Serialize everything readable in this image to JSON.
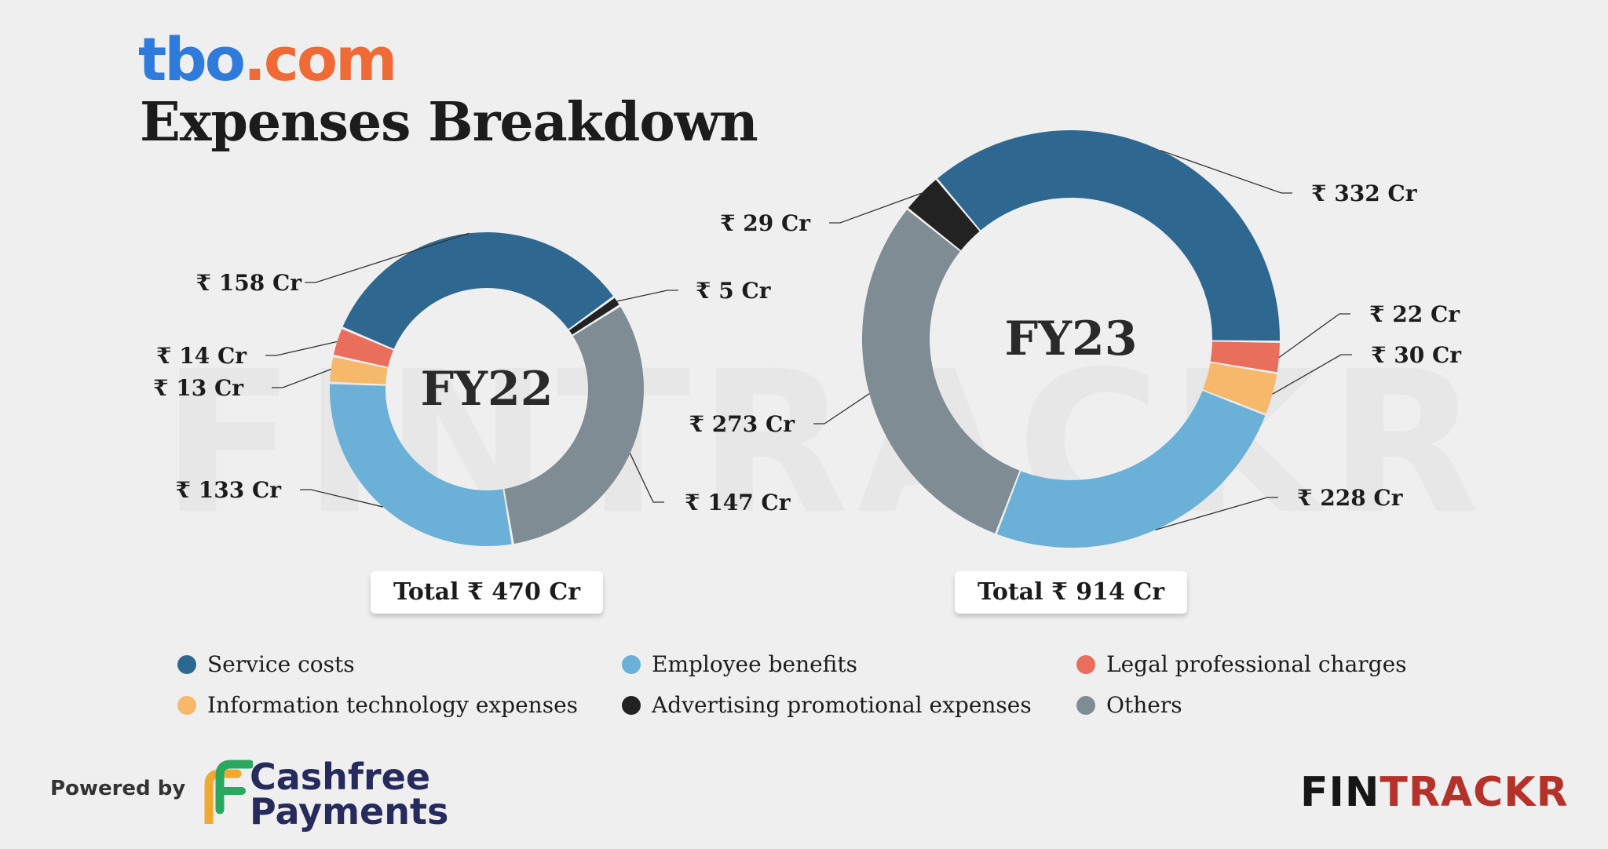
{
  "brand": {
    "logo_part1": "tbo",
    "logo_part2": ".com"
  },
  "title": "Expenses Breakdown",
  "watermark": "FINTRACKR",
  "colors": {
    "Service costs": "#2e6890",
    "Employee benefits": "#6ab0d7",
    "Legal professional charges": "#ea6e5c",
    "Information technology expenses": "#f6b86a",
    "Advertising promotional expenses": "#222222",
    "Others": "#7f8c94"
  },
  "chart_data": [
    {
      "type": "pie",
      "center_label": "FY22",
      "total_label": "Total ₹ 470 Cr",
      "series": [
        {
          "name": "Service costs",
          "value": 158,
          "label": "₹ 158 Cr"
        },
        {
          "name": "Advertising promotional expenses",
          "value": 5,
          "label": "₹ 5 Cr"
        },
        {
          "name": "Others",
          "value": 147,
          "label": "₹ 147 Cr"
        },
        {
          "name": "Employee benefits",
          "value": 133,
          "label": "₹ 133 Cr"
        },
        {
          "name": "Information technology expenses",
          "value": 13,
          "label": "₹ 13 Cr"
        },
        {
          "name": "Legal professional charges",
          "value": 14,
          "label": "₹ 14 Cr"
        }
      ]
    },
    {
      "type": "pie",
      "center_label": "FY23",
      "total_label": "Total ₹ 914 Cr",
      "series": [
        {
          "name": "Service costs",
          "value": 332,
          "label": "₹ 332 Cr"
        },
        {
          "name": "Legal professional charges",
          "value": 22,
          "label": "₹ 22 Cr"
        },
        {
          "name": "Information technology expenses",
          "value": 30,
          "label": "₹ 30 Cr"
        },
        {
          "name": "Employee benefits",
          "value": 228,
          "label": "₹ 228 Cr"
        },
        {
          "name": "Others",
          "value": 273,
          "label": "₹ 273 Cr"
        },
        {
          "name": "Advertising promotional expenses",
          "value": 29,
          "label": "₹ 29 Cr"
        }
      ]
    }
  ],
  "legend": [
    "Service costs",
    "Employee benefits",
    "Legal professional charges",
    "Information technology expenses",
    "Advertising promotional expenses",
    "Others"
  ],
  "footer": {
    "powered_by": "Powered by",
    "sponsor_line1": "Cashfree",
    "sponsor_line2": "Payments",
    "publisher_part1": "FIN",
    "publisher_part2": "TRACKR"
  }
}
